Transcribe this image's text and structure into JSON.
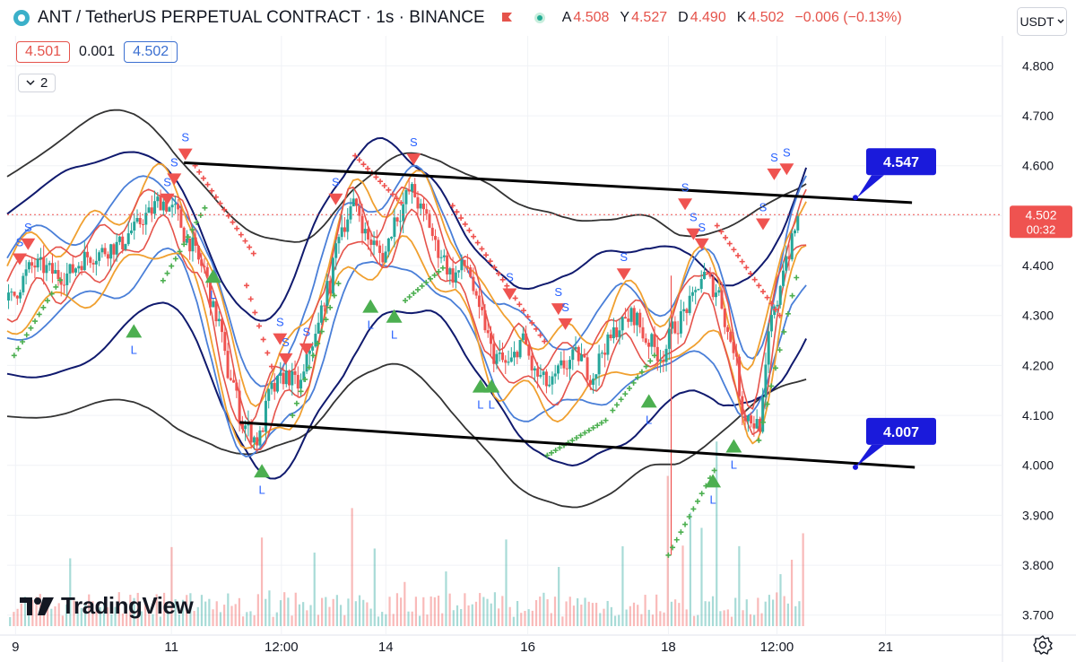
{
  "header": {
    "title": "ANT / TetherUS PERPETUAL CONTRACT · 1s · BINANCE",
    "ohlc": [
      {
        "k": "A",
        "v": "4.508"
      },
      {
        "k": "Y",
        "v": "4.527"
      },
      {
        "k": "D",
        "v": "4.490"
      },
      {
        "k": "K",
        "v": "4.502"
      }
    ],
    "change": "−0.006 (−0.13%)",
    "icons": [
      "symbol-icon",
      "flag-icon",
      "market-status-icon"
    ]
  },
  "trade": {
    "sell_price": "4.501",
    "spread": "0.001",
    "buy_price": "4.502"
  },
  "indicator_toggle": {
    "count": "2"
  },
  "currency": {
    "label": "USDT"
  },
  "branding": {
    "name": "TradingView"
  },
  "colors": {
    "candle_up": "#26a69a",
    "candle_down": "#ef5350",
    "red_band": "#e5534b",
    "orange_band": "#f0a030",
    "blue_band": "#4a7fd8",
    "navy_band": "#101a6e",
    "dark_band": "#333333",
    "label_bg": "#1a1adb",
    "sell_marker": "#ef5350",
    "buy_marker": "#4caf50",
    "sar_green": "#4caf50",
    "sar_red": "#ef5350"
  },
  "chart_data": {
    "type": "line",
    "title": "",
    "xlabel": "",
    "ylabel": "",
    "ylim": [
      3.66,
      4.86
    ],
    "y_ticks": [
      "4.800",
      "4.700",
      "4.600",
      "4.500",
      "4.400",
      "4.300",
      "4.200",
      "4.100",
      "4.000",
      "3.900",
      "3.800",
      "3.700"
    ],
    "x_ticks": [
      {
        "label": "9",
        "t": 0.6
      },
      {
        "label": "11",
        "t": 11.8
      },
      {
        "label": "12:00",
        "t": 19.7
      },
      {
        "label": "14",
        "t": 27.2
      },
      {
        "label": "16",
        "t": 37.4
      },
      {
        "label": "18",
        "t": 47.5
      },
      {
        "label": "12:00",
        "t": 55.3
      },
      {
        "label": "21",
        "t": 63.1
      }
    ],
    "x_range": [
      0,
      71.5
    ],
    "current_price": {
      "value": 4.502,
      "label": "4.502",
      "countdown": "00:32"
    },
    "price_series": {
      "t": [
        0,
        2,
        4,
        6,
        8,
        9,
        10,
        11,
        12,
        13,
        14,
        15,
        16,
        17,
        18,
        19,
        20,
        21,
        22,
        23,
        24,
        25,
        26,
        27,
        28,
        29,
        30,
        31,
        32,
        33,
        34,
        35,
        36,
        37,
        38,
        39,
        40,
        41,
        42,
        43,
        44,
        45,
        46,
        47,
        48,
        49,
        50,
        51,
        52,
        53,
        54,
        55,
        56,
        57
      ],
      "close": [
        4.33,
        4.4,
        4.38,
        4.42,
        4.44,
        4.47,
        4.5,
        4.53,
        4.51,
        4.45,
        4.4,
        4.3,
        4.18,
        4.08,
        4.05,
        4.15,
        4.18,
        4.16,
        4.25,
        4.35,
        4.48,
        4.52,
        4.45,
        4.42,
        4.5,
        4.55,
        4.5,
        4.43,
        4.38,
        4.4,
        4.3,
        4.22,
        4.2,
        4.25,
        4.18,
        4.16,
        4.2,
        4.22,
        4.18,
        4.24,
        4.28,
        4.3,
        4.25,
        4.22,
        4.28,
        4.32,
        4.38,
        4.35,
        4.25,
        4.1,
        4.08,
        4.3,
        4.42,
        4.5
      ]
    },
    "upper_trendline": {
      "start": {
        "t": 12.7,
        "v": 4.606
      },
      "end": {
        "t": 65.0,
        "v": 4.526
      }
    },
    "lower_trendline": {
      "start": {
        "t": 16.7,
        "v": 4.086
      },
      "end": {
        "t": 65.2,
        "v": 3.996
      }
    },
    "labels": [
      {
        "text": "4.547",
        "value": 4.547
      },
      {
        "text": "4.007",
        "value": 4.007
      }
    ],
    "sell_signals": [
      {
        "t": 0.9,
        "v": 4.41
      },
      {
        "t": 1.5,
        "v": 4.44
      },
      {
        "t": 11.5,
        "v": 4.53
      },
      {
        "t": 12.0,
        "v": 4.57
      },
      {
        "t": 12.8,
        "v": 4.62
      },
      {
        "t": 19.6,
        "v": 4.25
      },
      {
        "t": 20.0,
        "v": 4.21
      },
      {
        "t": 21.5,
        "v": 4.23
      },
      {
        "t": 23.6,
        "v": 4.53
      },
      {
        "t": 29.2,
        "v": 4.61
      },
      {
        "t": 36.1,
        "v": 4.34
      },
      {
        "t": 39.6,
        "v": 4.31
      },
      {
        "t": 40.1,
        "v": 4.28
      },
      {
        "t": 44.3,
        "v": 4.38
      },
      {
        "t": 48.7,
        "v": 4.52
      },
      {
        "t": 49.3,
        "v": 4.46
      },
      {
        "t": 49.9,
        "v": 4.44
      },
      {
        "t": 54.3,
        "v": 4.48
      },
      {
        "t": 55.1,
        "v": 4.58
      },
      {
        "t": 56.0,
        "v": 4.59
      }
    ],
    "buy_signals": [
      {
        "t": 9.1,
        "v": 4.27
      },
      {
        "t": 14.8,
        "v": 4.38
      },
      {
        "t": 18.3,
        "v": 3.99
      },
      {
        "t": 26.1,
        "v": 4.32
      },
      {
        "t": 27.8,
        "v": 4.3
      },
      {
        "t": 34.0,
        "v": 4.16
      },
      {
        "t": 34.8,
        "v": 4.16
      },
      {
        "t": 46.1,
        "v": 4.13
      },
      {
        "t": 50.7,
        "v": 3.97
      },
      {
        "t": 52.2,
        "v": 4.04
      }
    ],
    "signal_labels": {
      "sell": "S",
      "buy": "L"
    }
  }
}
